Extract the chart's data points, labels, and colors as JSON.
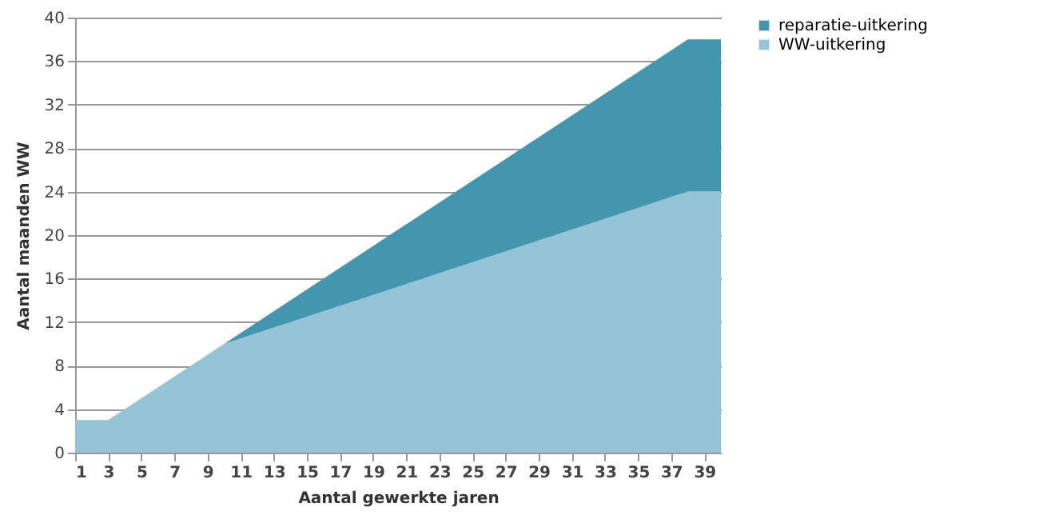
{
  "chart_data": {
    "type": "area",
    "stacked": true,
    "xlabel": "Aantal gewerkte jaren",
    "ylabel": "Aantal maanden WW",
    "x": [
      1,
      3,
      10,
      38,
      40
    ],
    "series": [
      {
        "name": "WW-uitkering",
        "color": "#94c4d6",
        "values": [
          3,
          3,
          10,
          24,
          24
        ]
      },
      {
        "name": "reparatie-uitkering",
        "color": "#4297ae",
        "values": [
          0,
          0,
          0,
          14,
          14
        ]
      }
    ],
    "xlim": [
      1,
      40
    ],
    "xticks": [
      1,
      3,
      5,
      7,
      9,
      11,
      13,
      15,
      17,
      19,
      21,
      23,
      25,
      27,
      29,
      31,
      33,
      35,
      37,
      39
    ],
    "ylim": [
      0,
      40
    ],
    "yticks": [
      0,
      4,
      8,
      12,
      16,
      20,
      24,
      28,
      32,
      36,
      40
    ],
    "grid": "y",
    "legend": "right"
  }
}
